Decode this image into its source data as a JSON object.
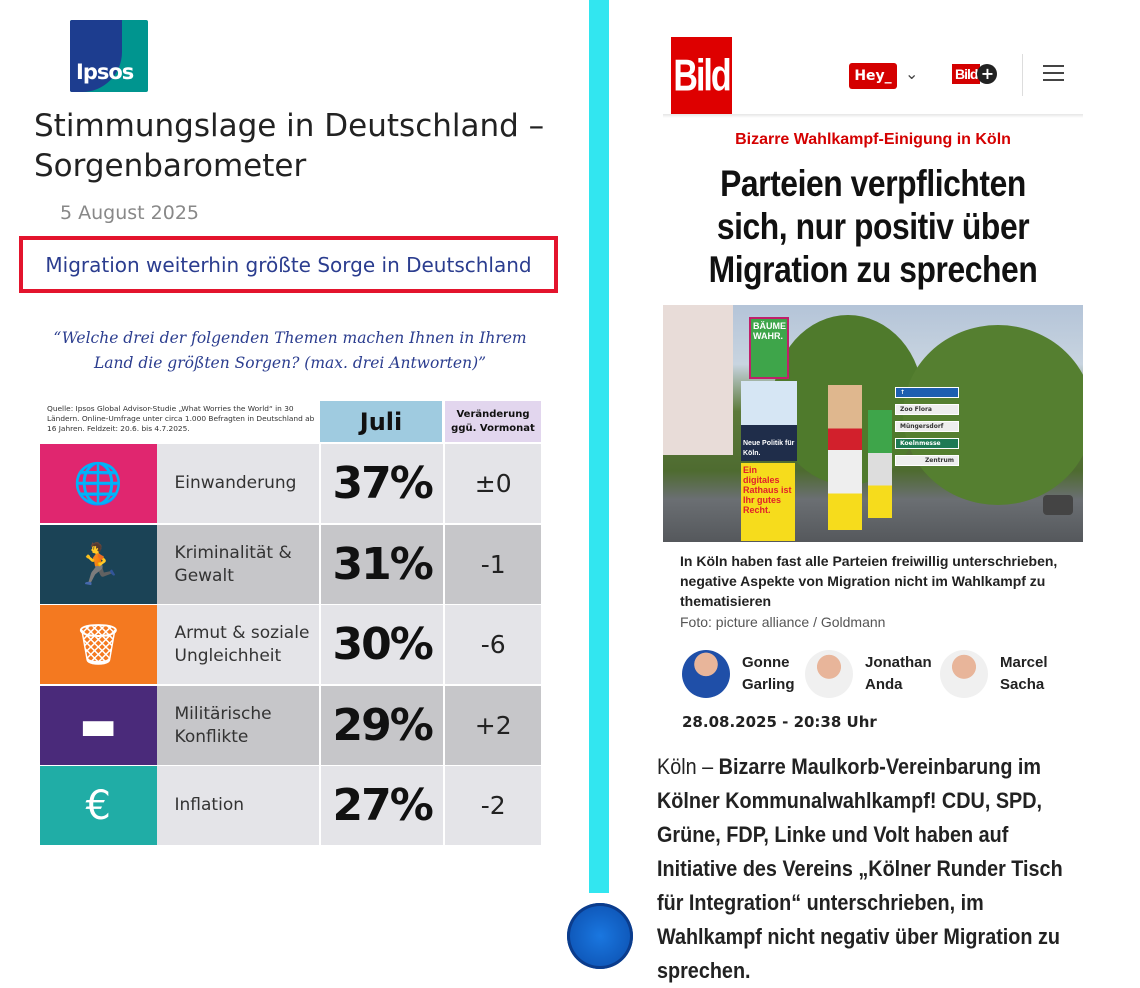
{
  "ipsos": {
    "logo_text": "Ipsos",
    "title": "Stimmungslage in Deutschland – Sorgenbarometer",
    "date": "5 August 2025",
    "highlight": "Migration weiterhin größte Sorge in Deutschland",
    "question": "“Welche drei der folgenden Themen machen Ihnen in Ihrem Land die größten Sorgen? (max. drei Antworten)”",
    "source": "Quelle: Ipsos Global Advisor-Studie „What Worries the World“ in 30 Ländern. Online-Umfrage unter circa 1.000 Befragten in Deutschland ab 16 Jahren. Feldzeit: 20.6. bis 4.7.2025.",
    "col_month": "Juli",
    "col_change": "Veränderung ggü. Vormonat",
    "rows": [
      {
        "label": "Einwanderung",
        "percent": "37%",
        "change": "±0",
        "icon": "globe-people-icon",
        "color": "#e0266f"
      },
      {
        "label": "Kriminalität & Gewalt",
        "percent": "31%",
        "change": "-1",
        "icon": "thief-icon",
        "color": "#1b4356"
      },
      {
        "label": "Armut & soziale Ungleichheit",
        "percent": "30%",
        "change": "-6",
        "icon": "poverty-trash-icon",
        "color": "#f47920"
      },
      {
        "label": "Militärische Konflikte",
        "percent": "29%",
        "change": "+2",
        "icon": "tank-icon",
        "color": "#4a2a7a"
      },
      {
        "label": "Inflation",
        "percent": "27%",
        "change": "-2",
        "icon": "euro-down-icon",
        "color": "#20ada6"
      }
    ]
  },
  "bild": {
    "logo": "Bild",
    "hey_label": "Hey_",
    "bildplus_label": "Bild",
    "kicker": "Bizarre Wahlkampf-Einigung in Köln",
    "headline": "Parteien verpflichten sich, nur positiv über Migration zu sprechen",
    "photo_texts": {
      "poster1": "BÄUME WAHR.",
      "poster2": "Neue Politik für Köln.",
      "poster3": "Ein digitales Rathaus ist Ihr gutes Recht.",
      "sign1": "Zoo Flora",
      "sign2": "Müngersdorf",
      "sign3": "Koelnmesse",
      "sign4": "Zentrum"
    },
    "caption": "In Köln haben fast alle Parteien freiwillig unterschrieben, negative Aspekte von Migration nicht im Wahlkampf zu thematisieren",
    "credit": "Foto: picture alliance / Goldmann",
    "authors": [
      {
        "first": "Gonne",
        "last": "Garling"
      },
      {
        "first": "Jonathan",
        "last": "Anda"
      },
      {
        "first": "Marcel",
        "last": "Sacha"
      }
    ],
    "timestamp": "28.08.2025 - 20:38 Uhr",
    "body_place": "Köln – ",
    "body_bold": "Bizarre Maulkorb-Vereinbarung im Kölner Kommunalwahlkampf! CDU, SPD, Grüne, FDP, Linke und Volt haben auf Initiative des Vereins „Kölner Runder Tisch für Integration“ unterschrieben, im Wahlkampf nicht negativ über Migration zu sprechen."
  },
  "colors": {
    "divider": "#32e6f0",
    "bild_red": "#de0000",
    "ipsos_blue": "#2b3d8f",
    "highlight_border": "#e3142d"
  }
}
